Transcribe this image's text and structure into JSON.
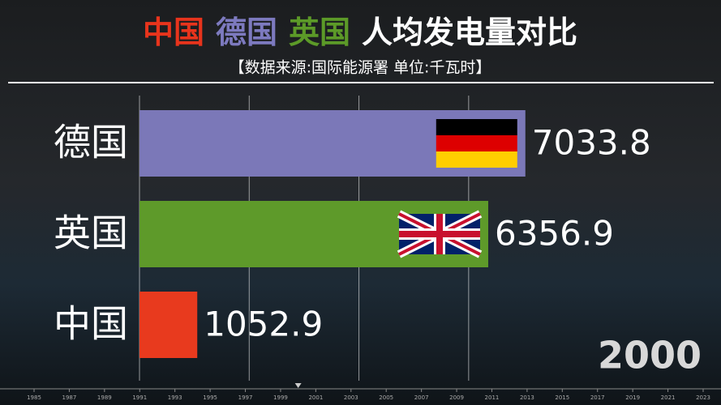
{
  "chart_data": {
    "type": "bar",
    "orientation": "horizontal",
    "title_parts": [
      {
        "text": "中国",
        "color": "#e8341c"
      },
      {
        "text": "德国",
        "color": "#7d7abf"
      },
      {
        "text": "英国",
        "color": "#5c9a28"
      },
      {
        "text": "人均发电量对比",
        "color": "#ffffff"
      }
    ],
    "subtitle": "【数据来源:国际能源署 单位:千瓦时】",
    "categories": [
      "德国",
      "英国",
      "中国"
    ],
    "values": [
      7033.8,
      6356.9,
      1052.9
    ],
    "colors": [
      "#7b78b8",
      "#5e9a2a",
      "#e83a1e"
    ],
    "xlim": [
      0,
      10600
    ],
    "xticks": [
      0,
      2000,
      4000,
      6000
    ],
    "grid": true,
    "year": 2000,
    "timeline": {
      "lim": [
        1985,
        2023
      ],
      "ticks": [
        1985,
        1987,
        1989,
        1991,
        1993,
        1995,
        1997,
        1999,
        2001,
        2003,
        2005,
        2007,
        2009,
        2011,
        2013,
        2015,
        2017,
        2019,
        2021,
        2023
      ]
    }
  }
}
